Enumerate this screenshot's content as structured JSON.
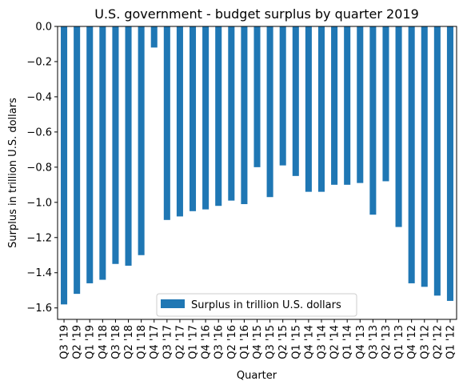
{
  "chart_data": {
    "type": "bar",
    "title": "U.S. government - budget surplus by quarter 2019",
    "xlabel": "Quarter",
    "ylabel": "Surplus in trillion U.S. dollars",
    "ylim": [
      -1.665,
      0
    ],
    "yticks": [
      0.0,
      -0.2,
      -0.4,
      -0.6,
      -0.8,
      -1.0,
      -1.2,
      -1.4,
      -1.6
    ],
    "ytick_labels": [
      "0.0",
      "−0.2",
      "−0.4",
      "−0.6",
      "−0.8",
      "−1.0",
      "−1.2",
      "−1.4",
      "−1.6"
    ],
    "grid": false,
    "legend_position": "bottom-center",
    "bar_color": "#1f77b4",
    "categories": [
      "Q3 '19",
      "Q2 '19",
      "Q1 '19",
      "Q4 '18",
      "Q3 '18",
      "Q2 '18",
      "Q1 '18",
      "Q4 '17",
      "Q3 '17",
      "Q2 '17",
      "Q1 '17",
      "Q4 '16",
      "Q3 '16",
      "Q2 '16",
      "Q1 '16",
      "Q4 '15",
      "Q3 '15",
      "Q2 '15",
      "Q1 '15",
      "Q4 '14",
      "Q3 '14",
      "Q2 '14",
      "Q1 '14",
      "Q4 '13",
      "Q3 '13",
      "Q2 '13",
      "Q1 '13",
      "Q4 '12",
      "Q3 '12",
      "Q2 '12",
      "Q1 '12"
    ],
    "series": [
      {
        "name": "Surplus in trillion U.S. dollars",
        "values": [
          -1.58,
          -1.52,
          -1.46,
          -1.44,
          -1.35,
          -1.36,
          -1.3,
          -0.12,
          -1.1,
          -1.08,
          -1.05,
          -1.04,
          -1.02,
          -0.99,
          -1.01,
          -0.8,
          -0.97,
          -0.79,
          -0.85,
          -0.94,
          -0.94,
          -0.9,
          -0.9,
          -0.89,
          -1.07,
          -0.88,
          -1.14,
          -1.46,
          -1.48,
          -1.53,
          -1.56
        ]
      }
    ]
  }
}
